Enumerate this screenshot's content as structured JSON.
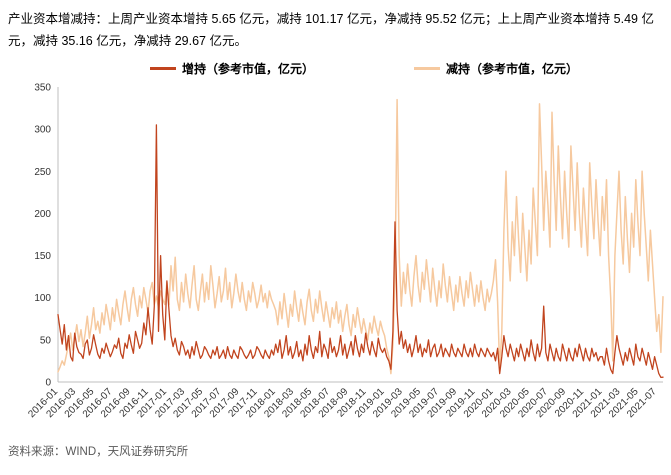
{
  "page": {
    "summary_text": "产业资本增减持：上周产业资本增持 5.65 亿元，减持 101.17 亿元，净减持 95.52 亿元；上上周产业资本增持 5.49 亿元，减持 35.16 亿元，净减持 29.67 亿元。",
    "source_text": "资料来源：WIND，天风证券研究所"
  },
  "chart_data": {
    "type": "line",
    "title": "",
    "xlabel": "",
    "ylabel": "",
    "frequency": "weekly",
    "x_start": "2016-01",
    "x_end": "2021-08",
    "ylim": [
      0,
      350
    ],
    "y_ticks": [
      0,
      50,
      100,
      150,
      200,
      250,
      300,
      350
    ],
    "grid": false,
    "legend_position": "top",
    "x_tick_labels": [
      "2016-01",
      "2016-03",
      "2016-05",
      "2016-07",
      "2016-09",
      "2016-11",
      "2017-01",
      "2017-03",
      "2017-05",
      "2017-07",
      "2017-09",
      "2017-11",
      "2018-01",
      "2018-03",
      "2018-05",
      "2018-07",
      "2018-09",
      "2018-11",
      "2019-01",
      "2019-03",
      "2019-05",
      "2019-07",
      "2019-09",
      "2019-11",
      "2020-01",
      "2020-03",
      "2020-05",
      "2020-07",
      "2020-09",
      "2020-11",
      "2021-01",
      "2021-03",
      "2021-05",
      "2021-07"
    ],
    "legend": [
      {
        "label": "增持（参考市值，亿元）",
        "color": "#C1441E"
      },
      {
        "label": "减持（参考市值，亿元）",
        "color": "#F6C99F"
      }
    ],
    "series": [
      {
        "name": "增持（参考市值，亿元）",
        "color": "#C1441E",
        "values": [
          80,
          62,
          45,
          68,
          38,
          55,
          30,
          25,
          58,
          42,
          35,
          33,
          28,
          45,
          50,
          32,
          40,
          56,
          44,
          33,
          28,
          40,
          34,
          46,
          38,
          30,
          36,
          44,
          40,
          52,
          34,
          28,
          46,
          40,
          56,
          44,
          34,
          60,
          50,
          40,
          46,
          70,
          56,
          88,
          62,
          45,
          90,
          305,
          60,
          150,
          80,
          50,
          120,
          85,
          55,
          42,
          52,
          38,
          32,
          48,
          42,
          32,
          38,
          28,
          42,
          32,
          48,
          38,
          28,
          32,
          42,
          38,
          32,
          28,
          38,
          32,
          42,
          28,
          32,
          38,
          28,
          42,
          32,
          28,
          38,
          32,
          28,
          42,
          38,
          32,
          28,
          32,
          38,
          28,
          32,
          42,
          38,
          32,
          28,
          38,
          32,
          28,
          38,
          32,
          45,
          35,
          50,
          28,
          38,
          55,
          32,
          42,
          28,
          35,
          48,
          30,
          38,
          25,
          45,
          32,
          55,
          38,
          28,
          42,
          35,
          60,
          30,
          45,
          38,
          28,
          52,
          35,
          42,
          30,
          38,
          55,
          32,
          45,
          28,
          38,
          48,
          32,
          55,
          40,
          30,
          45,
          35,
          58,
          42,
          32,
          48,
          38,
          30,
          52,
          40,
          35,
          40,
          30,
          25,
          15,
          60,
          190,
          85,
          45,
          60,
          40,
          50,
          35,
          45,
          30,
          40,
          55,
          35,
          45,
          30,
          40,
          35,
          50,
          30,
          40,
          45,
          30,
          35,
          45,
          30,
          40,
          35,
          30,
          45,
          35,
          30,
          40,
          35,
          30,
          45,
          35,
          30,
          40,
          30,
          45,
          35,
          30,
          40,
          35,
          30,
          40,
          35,
          30,
          35,
          25,
          40,
          10,
          30,
          55,
          40,
          30,
          45,
          35,
          25,
          40,
          30,
          45,
          35,
          25,
          40,
          30,
          50,
          35,
          25,
          45,
          30,
          40,
          90,
          35,
          25,
          45,
          35,
          25,
          40,
          30,
          25,
          45,
          35,
          25,
          40,
          30,
          25,
          40,
          30,
          45,
          35,
          25,
          40,
          30,
          25,
          40,
          30,
          35,
          25,
          30,
          30,
          20,
          40,
          25,
          15,
          10,
          35,
          55,
          40,
          30,
          20,
          35,
          25,
          40,
          30,
          20,
          45,
          30,
          25,
          40,
          30,
          20,
          35,
          25,
          15,
          30,
          20,
          10,
          5.49,
          5.65
        ]
      },
      {
        "name": "减持（参考市值，亿元）",
        "color": "#F6C99F",
        "values": [
          12,
          18,
          25,
          20,
          32,
          45,
          58,
          38,
          52,
          68,
          48,
          62,
          42,
          58,
          78,
          52,
          68,
          88,
          62,
          72,
          58,
          82,
          68,
          92,
          78,
          62,
          88,
          72,
          98,
          82,
          68,
          92,
          108,
          88,
          72,
          98,
          112,
          92,
          78,
          102,
          88,
          112,
          98,
          82,
          108,
          118,
          92,
          102,
          88,
          108,
          98,
          92,
          118,
          92,
          138,
          108,
          148,
          98,
          85,
          118,
          95,
          128,
          105,
          88,
          115,
          138,
          98,
          85,
          108,
          128,
          95,
          118,
          98,
          138,
          115,
          88,
          105,
          125,
          95,
          108,
          135,
          98,
          118,
          88,
          105,
          128,
          108,
          95,
          118,
          98,
          85,
          108,
          95,
          118,
          105,
          88,
          98,
          115,
          95,
          105,
          88,
          108,
          98,
          92,
          85,
          68,
          95,
          75,
          105,
          85,
          65,
          92,
          78,
          108,
          88,
          72,
          98,
          82,
          68,
          95,
          110,
          85,
          72,
          98,
          82,
          108,
          88,
          72,
          95,
          80,
          65,
          88,
          75,
          95,
          70,
          85,
          60,
          78,
          92,
          68,
          55,
          80,
          65,
          88,
          72,
          58,
          75,
          62,
          50,
          70,
          58,
          78,
          65,
          55,
          72,
          62,
          55,
          40,
          30,
          10,
          45,
          120,
          335,
          150,
          90,
          130,
          105,
          140,
          110,
          90,
          125,
          150,
          115,
          95,
          130,
          110,
          145,
          120,
          95,
          135,
          110,
          90,
          120,
          100,
          140,
          115,
          95,
          125,
          105,
          85,
          115,
          95,
          125,
          105,
          90,
          120,
          100,
          130,
          110,
          90,
          115,
          95,
          120,
          100,
          85,
          110,
          95,
          105,
          120,
          145,
          95,
          15,
          60,
          180,
          250,
          160,
          120,
          190,
          150,
          220,
          170,
          130,
          200,
          160,
          120,
          180,
          140,
          230,
          190,
          150,
          330,
          260,
          180,
          250,
          210,
          160,
          320,
          240,
          180,
          280,
          220,
          170,
          250,
          200,
          160,
          280,
          230,
          180,
          260,
          200,
          160,
          230,
          190,
          150,
          260,
          210,
          170,
          240,
          190,
          150,
          220,
          180,
          240,
          150,
          100,
          25,
          150,
          200,
          250,
          180,
          140,
          220,
          170,
          130,
          200,
          160,
          240,
          190,
          150,
          250,
          200,
          160,
          120,
          180,
          140,
          100,
          60,
          80,
          35.16,
          101.17
        ]
      }
    ]
  }
}
